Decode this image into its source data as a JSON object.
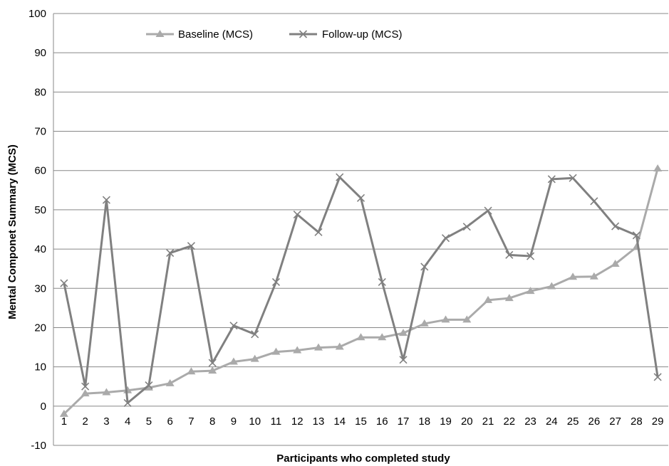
{
  "chart_data": {
    "type": "line",
    "title": "",
    "xlabel": "Participants who completed study",
    "ylabel": "Mental Componet Summary (MCS)",
    "ylim": [
      -10,
      100
    ],
    "yticks": [
      -10,
      0,
      10,
      20,
      30,
      40,
      50,
      60,
      70,
      80,
      90,
      100
    ],
    "categories": [
      "1",
      "2",
      "3",
      "4",
      "5",
      "6",
      "7",
      "8",
      "9",
      "10",
      "11",
      "12",
      "13",
      "14",
      "15",
      "16",
      "17",
      "18",
      "19",
      "20",
      "21",
      "22",
      "23",
      "24",
      "25",
      "26",
      "27",
      "28",
      "29"
    ],
    "grid": true,
    "legend_position": "top-left",
    "series": [
      {
        "name": "Baseline (MCS)",
        "marker": "triangle",
        "color": "#aaaaaa",
        "values": [
          -2,
          3.2,
          3.5,
          4,
          4.7,
          5.8,
          8.8,
          9,
          11.3,
          12,
          13.8,
          14.2,
          14.9,
          15.1,
          17.5,
          17.5,
          18.6,
          21,
          22,
          22,
          27,
          27.5,
          29.3,
          30.5,
          32.9,
          33,
          36.2,
          40.5,
          60.5
        ]
      },
      {
        "name": "Follow-up (MCS)",
        "marker": "x",
        "color": "#808080",
        "values": [
          31.3,
          5,
          52.5,
          0.8,
          5.3,
          39,
          40.8,
          11,
          20.5,
          18.3,
          31.6,
          48.8,
          44.3,
          58.3,
          53,
          31.6,
          11.8,
          35.5,
          42.8,
          45.7,
          49.8,
          38.5,
          38.2,
          57.8,
          58.1,
          52.2,
          45.8,
          43.5,
          7.4
        ]
      }
    ]
  }
}
